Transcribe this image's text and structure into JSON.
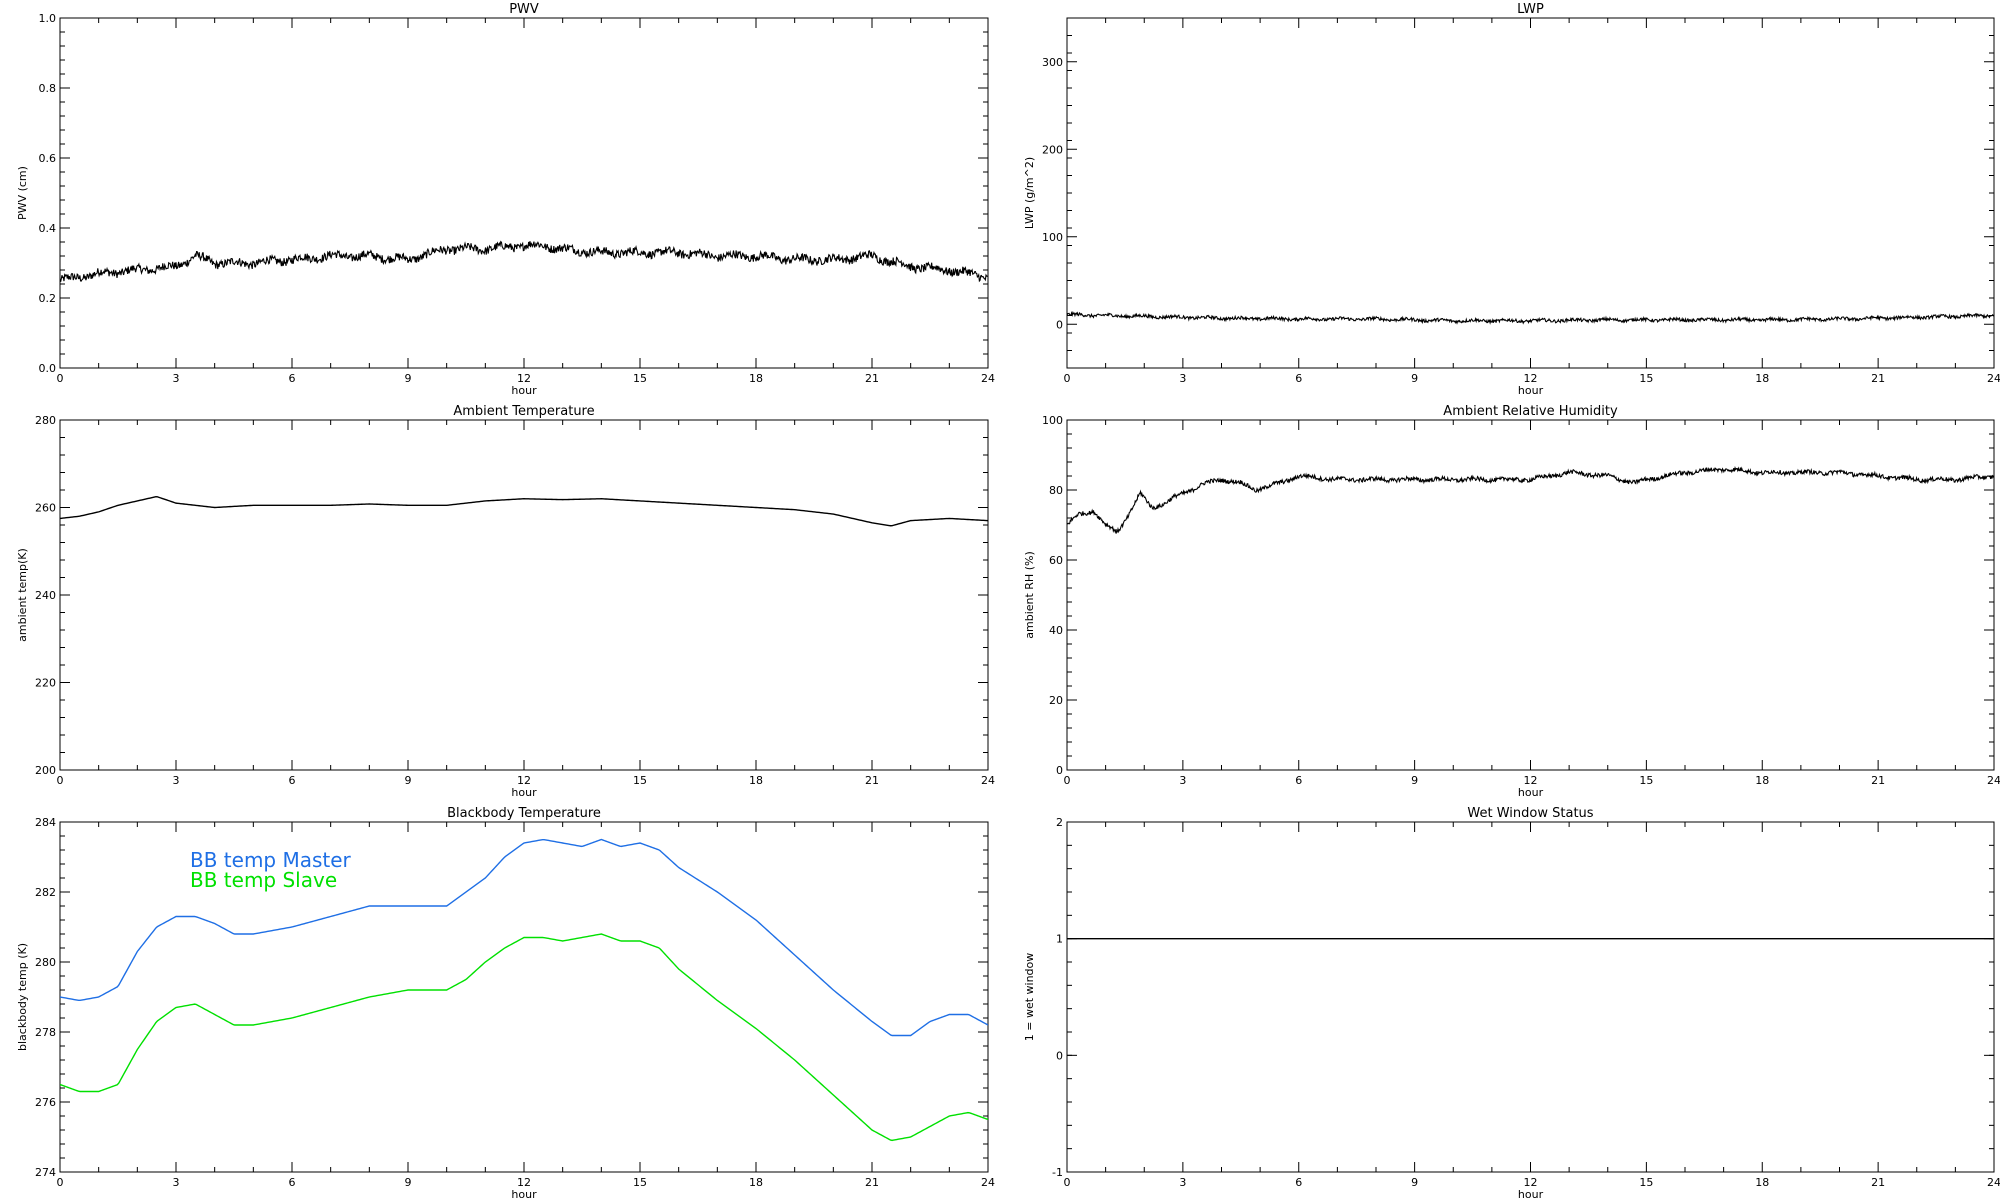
{
  "chart_data": [
    {
      "id": "pwv",
      "type": "line",
      "title": "PWV",
      "xlabel": "hour",
      "ylabel": "PWV (cm)",
      "xlim": [
        0,
        24
      ],
      "ylim": [
        0.0,
        1.0
      ],
      "xticks": [
        "0",
        "3",
        "6",
        "9",
        "12",
        "15",
        "18",
        "21",
        "24"
      ],
      "yticks": [
        "0.0",
        "0.2",
        "0.4",
        "0.6",
        "0.8",
        "1.0"
      ],
      "noise": 0.012,
      "series": [
        {
          "color": "#000000",
          "x": [
            0,
            0.5,
            1,
            2,
            3,
            3.5,
            4,
            5,
            6,
            7,
            8,
            9,
            10,
            11,
            12,
            12.5,
            13,
            14,
            15,
            16,
            17,
            18,
            19,
            20,
            21,
            22,
            23,
            24
          ],
          "y": [
            0.25,
            0.26,
            0.27,
            0.28,
            0.29,
            0.32,
            0.3,
            0.3,
            0.31,
            0.32,
            0.32,
            0.31,
            0.34,
            0.34,
            0.35,
            0.35,
            0.34,
            0.33,
            0.33,
            0.33,
            0.32,
            0.32,
            0.31,
            0.31,
            0.32,
            0.29,
            0.28,
            0.26
          ]
        }
      ]
    },
    {
      "id": "lwp",
      "type": "line",
      "title": "LWP",
      "xlabel": "hour",
      "ylabel": "LWP (g/m^2)",
      "xlim": [
        0,
        24
      ],
      "ylim": [
        -50,
        350
      ],
      "xticks": [
        "0",
        "3",
        "6",
        "9",
        "12",
        "15",
        "18",
        "21",
        "24"
      ],
      "yticks": [
        "0",
        "100",
        "200",
        "300"
      ],
      "noise": 1.8,
      "series": [
        {
          "color": "#000000",
          "x": [
            0,
            2,
            4,
            6,
            8,
            10,
            12,
            14,
            16,
            18,
            20,
            22,
            24
          ],
          "y": [
            11,
            9,
            7,
            6,
            6,
            4,
            4,
            5,
            5,
            5,
            6,
            8,
            10
          ]
        }
      ]
    },
    {
      "id": "ambient-temp",
      "type": "line",
      "title": "Ambient Temperature",
      "xlabel": "hour",
      "ylabel": "ambient temp(K)",
      "xlim": [
        0,
        24
      ],
      "ylim": [
        200,
        280
      ],
      "xticks": [
        "0",
        "3",
        "6",
        "9",
        "12",
        "15",
        "18",
        "21",
        "24"
      ],
      "yticks": [
        "200",
        "220",
        "240",
        "260",
        "280"
      ],
      "noise": 0.0,
      "series": [
        {
          "color": "#000000",
          "x": [
            0,
            0.5,
            1,
            1.5,
            2,
            2.5,
            3,
            4,
            5,
            6,
            7,
            8,
            9,
            10,
            11,
            12,
            13,
            14,
            15,
            16,
            17,
            18,
            19,
            20,
            21,
            21.5,
            22,
            23,
            24
          ],
          "y": [
            257.5,
            258,
            259,
            260.5,
            261.5,
            262.5,
            261,
            260,
            260.5,
            260.5,
            260.5,
            260.8,
            260.5,
            260.5,
            261.5,
            262,
            261.8,
            262,
            261.5,
            261,
            260.5,
            260,
            259.5,
            258.5,
            256.5,
            255.8,
            257,
            257.5,
            257
          ]
        }
      ]
    },
    {
      "id": "ambient-rh",
      "type": "line",
      "title": "Ambient Relative Humidity",
      "xlabel": "hour",
      "ylabel": "ambient RH (%)",
      "xlim": [
        0,
        24
      ],
      "ylim": [
        0,
        100
      ],
      "xticks": [
        "0",
        "3",
        "6",
        "9",
        "12",
        "15",
        "18",
        "21",
        "24"
      ],
      "yticks": [
        "0",
        "20",
        "40",
        "60",
        "80",
        "100"
      ],
      "noise": 0.6,
      "series": [
        {
          "color": "#000000",
          "x": [
            0,
            0.3,
            0.7,
            1,
            1.3,
            1.6,
            1.9,
            2.2,
            2.5,
            2.8,
            3.2,
            3.6,
            4,
            4.5,
            4.9,
            5.5,
            6,
            7,
            8,
            9,
            10,
            11,
            12,
            13,
            14,
            14.7,
            15,
            16,
            17,
            18,
            19,
            20,
            21,
            22,
            23,
            24
          ],
          "y": [
            70,
            73,
            74,
            70,
            68,
            73,
            79,
            75,
            76,
            78,
            80,
            82,
            83,
            82,
            80,
            82,
            84,
            83,
            83,
            83,
            83,
            83,
            83,
            85,
            84,
            82,
            83,
            85,
            86,
            85,
            85,
            85,
            84,
            83,
            83,
            84
          ]
        }
      ]
    },
    {
      "id": "bb-temp",
      "type": "line",
      "title": "Blackbody Temperature",
      "xlabel": "hour",
      "ylabel": "blackbody temp (K)",
      "xlim": [
        0,
        24
      ],
      "ylim": [
        274,
        284
      ],
      "xticks": [
        "0",
        "3",
        "6",
        "9",
        "12",
        "15",
        "18",
        "21",
        "24"
      ],
      "yticks": [
        "274",
        "276",
        "278",
        "280",
        "282",
        "284"
      ],
      "noise": 0.0,
      "legend": {
        "position": "top-left"
      },
      "series": [
        {
          "name": "BB temp Master",
          "color": "#1f6fe5",
          "x": [
            0,
            0.5,
            1,
            1.5,
            2,
            2.5,
            3,
            3.5,
            4,
            4.5,
            5,
            6,
            7,
            8,
            9,
            10,
            10.5,
            11,
            11.5,
            12,
            12.5,
            13,
            13.5,
            14,
            14.5,
            15,
            15.5,
            16,
            17,
            18,
            19,
            20,
            21,
            21.5,
            22,
            22.5,
            23,
            23.5,
            24
          ],
          "y": [
            279,
            278.9,
            279,
            279.3,
            280.3,
            281,
            281.3,
            281.3,
            281.1,
            280.8,
            280.8,
            281,
            281.3,
            281.6,
            281.6,
            281.6,
            282,
            282.4,
            283,
            283.4,
            283.5,
            283.4,
            283.3,
            283.5,
            283.3,
            283.4,
            283.2,
            282.7,
            282,
            281.2,
            280.2,
            279.2,
            278.3,
            277.9,
            277.9,
            278.3,
            278.5,
            278.5,
            278.2
          ]
        },
        {
          "name": "BB temp Slave",
          "color": "#00e000",
          "x": [
            0,
            0.5,
            1,
            1.5,
            2,
            2.5,
            3,
            3.5,
            4,
            4.5,
            5,
            6,
            7,
            8,
            9,
            10,
            10.5,
            11,
            11.5,
            12,
            12.5,
            13,
            13.5,
            14,
            14.5,
            15,
            15.5,
            16,
            17,
            18,
            19,
            20,
            21,
            21.5,
            22,
            22.5,
            23,
            23.5,
            24
          ],
          "y": [
            276.5,
            276.3,
            276.3,
            276.5,
            277.5,
            278.3,
            278.7,
            278.8,
            278.5,
            278.2,
            278.2,
            278.4,
            278.7,
            279,
            279.2,
            279.2,
            279.5,
            280,
            280.4,
            280.7,
            280.7,
            280.6,
            280.7,
            280.8,
            280.6,
            280.6,
            280.4,
            279.8,
            278.9,
            278.1,
            277.2,
            276.2,
            275.2,
            274.9,
            275,
            275.3,
            275.6,
            275.7,
            275.5
          ]
        }
      ]
    },
    {
      "id": "wet-window",
      "type": "line",
      "title": "Wet Window Status",
      "xlabel": "hour",
      "ylabel": "1 = wet window",
      "xlim": [
        0,
        24
      ],
      "ylim": [
        -1,
        2
      ],
      "xticks": [
        "0",
        "3",
        "6",
        "9",
        "12",
        "15",
        "18",
        "21",
        "24"
      ],
      "yticks": [
        "-1",
        "0",
        "1",
        "2"
      ],
      "noise": 0.0,
      "series": [
        {
          "color": "#000000",
          "x": [
            0,
            24
          ],
          "y": [
            1,
            1
          ]
        }
      ]
    }
  ]
}
